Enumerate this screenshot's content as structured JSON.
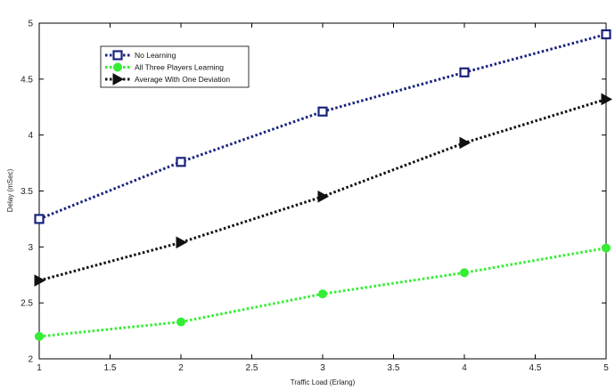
{
  "chart_data": {
    "type": "line",
    "title": "",
    "xlabel": "Traffic Load (Erlang)",
    "ylabel": "Delay (mSec)",
    "xlim": [
      1,
      5
    ],
    "ylim": [
      2,
      5
    ],
    "xticks": [
      1,
      1.5,
      2,
      2.5,
      3,
      3.5,
      4,
      4.5,
      5
    ],
    "yticks": [
      2,
      2.5,
      3,
      3.5,
      4,
      4.5,
      5
    ],
    "xtick_labels": [
      "1",
      "1.5",
      "2",
      "2.5",
      "3",
      "3.5",
      "4",
      "4.5",
      "5"
    ],
    "ytick_labels": [
      "2",
      "2.5",
      "3",
      "3.5",
      "4",
      "4.5",
      "5"
    ],
    "grid": false,
    "legend_position": "top-left",
    "x": [
      1,
      2,
      3,
      4,
      5
    ],
    "series": [
      {
        "name": "No Learning",
        "values": [
          3.25,
          3.76,
          4.21,
          4.56,
          4.9
        ],
        "color": "#1a237e",
        "marker": "square",
        "line_style": "dotted"
      },
      {
        "name": "All Three Players Learning",
        "values": [
          2.2,
          2.33,
          2.58,
          2.77,
          2.99
        ],
        "color": "#33ee33",
        "marker": "circle",
        "line_style": "dotted"
      },
      {
        "name": "Average With One Deviation",
        "values": [
          2.7,
          3.04,
          3.45,
          3.93,
          4.32
        ],
        "color": "#111111",
        "marker": "triangle-right",
        "line_style": "dotted"
      }
    ]
  }
}
